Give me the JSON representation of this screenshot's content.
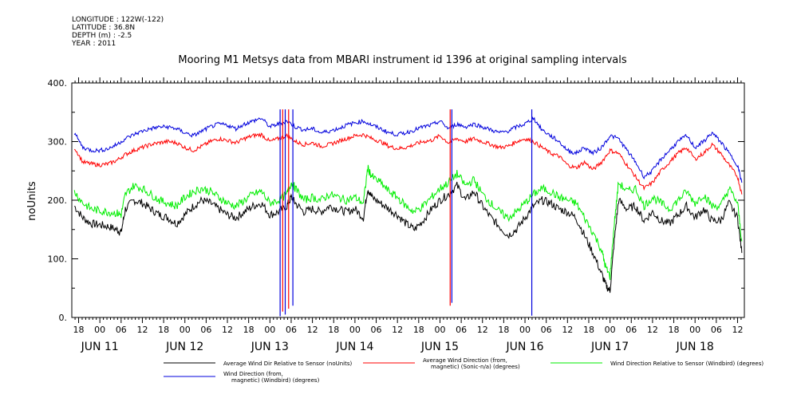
{
  "header": {
    "longitude": "LONGITUDE : 122W(-122)",
    "latitude": "LATITUDE : 36.8N",
    "depth": "DEPTH (m) : -2.5",
    "year": "YEAR : 2011"
  },
  "chart_data": {
    "type": "line",
    "title": "Mooring M1 Metsys data from MBARI instrument id 1396 at original sampling intervals",
    "ylabel": "noUnits",
    "xlabel": "",
    "ylim": [
      0,
      400
    ],
    "yticks": [
      "0.",
      "100.",
      "200.",
      "300.",
      "400."
    ],
    "xlim": [
      -0.33,
      7.58
    ],
    "x_units": "days since JUN 11 2011 00:00",
    "hour_ticks": [
      "18",
      "00",
      "06",
      "12",
      "18",
      "00",
      "06",
      "12",
      "18",
      "00",
      "06",
      "12",
      "18",
      "00",
      "06",
      "12",
      "18",
      "00",
      "06",
      "12",
      "18",
      "00",
      "06",
      "12",
      "18",
      "00",
      "06",
      "12",
      "18",
      "00",
      "06",
      "12"
    ],
    "day_labels": [
      {
        "label": "JUN 11",
        "day": 0
      },
      {
        "label": "JUN 12",
        "day": 1
      },
      {
        "label": "JUN 13",
        "day": 2
      },
      {
        "label": "JUN 14",
        "day": 3
      },
      {
        "label": "JUN 15",
        "day": 4
      },
      {
        "label": "JUN 16",
        "day": 5
      },
      {
        "label": "JUN 17",
        "day": 6
      },
      {
        "label": "JUN 18",
        "day": 7
      }
    ],
    "series": [
      {
        "name": "Average Wind Dir Relative to Sensor (noUnits)",
        "color": "#000000",
        "x": [
          -0.3,
          -0.2,
          -0.1,
          0.0,
          0.1,
          0.2,
          0.25,
          0.3,
          0.4,
          0.5,
          0.6,
          0.7,
          0.8,
          0.9,
          1.0,
          1.1,
          1.2,
          1.3,
          1.4,
          1.5,
          1.6,
          1.7,
          1.8,
          1.9,
          2.0,
          2.1,
          2.2,
          2.25,
          2.3,
          2.4,
          2.5,
          2.6,
          2.7,
          2.8,
          2.9,
          3.0,
          3.1,
          3.15,
          3.2,
          3.3,
          3.4,
          3.5,
          3.6,
          3.7,
          3.8,
          3.9,
          4.0,
          4.1,
          4.2,
          4.3,
          4.4,
          4.5,
          4.6,
          4.7,
          4.8,
          4.9,
          5.0,
          5.1,
          5.2,
          5.3,
          5.4,
          5.5,
          5.6,
          5.7,
          5.8,
          5.9,
          5.95,
          6.0,
          6.05,
          6.1,
          6.2,
          6.3,
          6.4,
          6.5,
          6.6,
          6.7,
          6.8,
          6.9,
          7.0,
          7.1,
          7.2,
          7.3,
          7.4,
          7.5,
          7.55
        ],
        "values": [
          190,
          170,
          160,
          158,
          155,
          150,
          145,
          185,
          200,
          195,
          185,
          175,
          170,
          160,
          175,
          190,
          200,
          195,
          185,
          175,
          170,
          180,
          190,
          195,
          175,
          180,
          190,
          205,
          195,
          180,
          185,
          180,
          190,
          185,
          180,
          185,
          170,
          220,
          205,
          195,
          185,
          175,
          160,
          150,
          165,
          185,
          200,
          210,
          225,
          200,
          215,
          190,
          170,
          155,
          140,
          150,
          170,
          190,
          200,
          195,
          185,
          180,
          170,
          140,
          110,
          75,
          55,
          45,
          130,
          200,
          185,
          190,
          165,
          180,
          165,
          160,
          175,
          190,
          170,
          185,
          165,
          165,
          195,
          170,
          110
        ]
      },
      {
        "name": "Average Wind Direction (from, magnetic) (Sonic-n/a) (degrees)",
        "color": "#ff0000",
        "x": [
          -0.3,
          -0.2,
          -0.1,
          0.0,
          0.1,
          0.2,
          0.3,
          0.4,
          0.5,
          0.6,
          0.7,
          0.8,
          0.9,
          1.0,
          1.1,
          1.2,
          1.3,
          1.4,
          1.5,
          1.6,
          1.7,
          1.8,
          1.9,
          2.0,
          2.1,
          2.2,
          2.3,
          2.4,
          2.5,
          2.6,
          2.7,
          2.8,
          2.9,
          3.0,
          3.1,
          3.2,
          3.3,
          3.4,
          3.5,
          3.6,
          3.7,
          3.8,
          3.9,
          4.0,
          4.1,
          4.2,
          4.3,
          4.4,
          4.5,
          4.6,
          4.7,
          4.8,
          4.9,
          5.0,
          5.1,
          5.2,
          5.3,
          5.4,
          5.5,
          5.6,
          5.7,
          5.8,
          5.9,
          6.0,
          6.1,
          6.2,
          6.3,
          6.4,
          6.5,
          6.6,
          6.7,
          6.8,
          6.9,
          7.0,
          7.1,
          7.2,
          7.3,
          7.4,
          7.5,
          7.55
        ],
        "values": [
          290,
          265,
          262,
          260,
          262,
          268,
          278,
          285,
          290,
          295,
          298,
          300,
          298,
          290,
          285,
          292,
          300,
          305,
          302,
          298,
          305,
          310,
          312,
          300,
          305,
          310,
          300,
          295,
          298,
          292,
          295,
          300,
          305,
          310,
          312,
          305,
          300,
          292,
          288,
          290,
          295,
          300,
          302,
          310,
          298,
          305,
          300,
          305,
          300,
          295,
          290,
          292,
          300,
          305,
          300,
          290,
          280,
          275,
          260,
          255,
          265,
          252,
          265,
          285,
          280,
          260,
          240,
          220,
          230,
          250,
          265,
          280,
          290,
          270,
          280,
          295,
          280,
          260,
          240,
          210
        ]
      },
      {
        "name": "Wind Direction Relative to Sensor (Windbird) (degrees)",
        "color": "#00ee00",
        "x": [
          -0.3,
          -0.2,
          -0.1,
          0.0,
          0.1,
          0.2,
          0.25,
          0.3,
          0.4,
          0.5,
          0.6,
          0.7,
          0.8,
          0.9,
          1.0,
          1.1,
          1.2,
          1.3,
          1.4,
          1.5,
          1.6,
          1.7,
          1.8,
          1.9,
          2.0,
          2.1,
          2.2,
          2.25,
          2.3,
          2.4,
          2.5,
          2.6,
          2.7,
          2.8,
          2.9,
          3.0,
          3.1,
          3.15,
          3.2,
          3.3,
          3.4,
          3.5,
          3.6,
          3.7,
          3.8,
          3.9,
          4.0,
          4.1,
          4.2,
          4.3,
          4.4,
          4.5,
          4.6,
          4.7,
          4.8,
          4.9,
          5.0,
          5.1,
          5.2,
          5.3,
          5.4,
          5.5,
          5.6,
          5.7,
          5.8,
          5.9,
          5.95,
          6.0,
          6.05,
          6.1,
          6.2,
          6.3,
          6.4,
          6.5,
          6.6,
          6.7,
          6.8,
          6.9,
          7.0,
          7.1,
          7.2,
          7.3,
          7.4,
          7.5,
          7.55
        ],
        "values": [
          215,
          195,
          185,
          182,
          180,
          178,
          175,
          210,
          225,
          220,
          210,
          200,
          195,
          190,
          205,
          215,
          220,
          215,
          205,
          195,
          190,
          200,
          210,
          215,
          195,
          200,
          210,
          230,
          220,
          200,
          205,
          200,
          210,
          205,
          200,
          205,
          195,
          255,
          240,
          230,
          215,
          205,
          190,
          180,
          190,
          205,
          220,
          230,
          245,
          225,
          235,
          210,
          195,
          180,
          170,
          180,
          195,
          210,
          220,
          215,
          205,
          200,
          195,
          170,
          145,
          115,
          85,
          70,
          160,
          230,
          215,
          220,
          190,
          205,
          195,
          185,
          200,
          215,
          195,
          210,
          190,
          190,
          220,
          195,
          130
        ]
      },
      {
        "name": "Wind Direction (from, magnetic) (Windbird) (degrees)",
        "color": "#0000dd",
        "x": [
          -0.3,
          -0.2,
          -0.1,
          0.0,
          0.1,
          0.2,
          0.3,
          0.4,
          0.5,
          0.6,
          0.7,
          0.8,
          0.9,
          1.0,
          1.1,
          1.2,
          1.3,
          1.4,
          1.5,
          1.6,
          1.7,
          1.8,
          1.9,
          2.0,
          2.1,
          2.2,
          2.3,
          2.4,
          2.5,
          2.6,
          2.7,
          2.8,
          2.9,
          3.0,
          3.1,
          3.2,
          3.3,
          3.4,
          3.5,
          3.6,
          3.7,
          3.8,
          3.9,
          4.0,
          4.1,
          4.2,
          4.3,
          4.4,
          4.5,
          4.6,
          4.7,
          4.8,
          4.9,
          5.0,
          5.1,
          5.2,
          5.3,
          5.4,
          5.5,
          5.6,
          5.7,
          5.8,
          5.9,
          6.0,
          6.1,
          6.2,
          6.3,
          6.4,
          6.5,
          6.6,
          6.7,
          6.8,
          6.9,
          7.0,
          7.1,
          7.2,
          7.3,
          7.4,
          7.5,
          7.55
        ],
        "values": [
          315,
          290,
          285,
          285,
          288,
          295,
          305,
          312,
          318,
          322,
          325,
          325,
          322,
          315,
          310,
          318,
          325,
          330,
          328,
          322,
          330,
          335,
          340,
          325,
          330,
          335,
          325,
          320,
          322,
          315,
          318,
          322,
          328,
          332,
          335,
          328,
          322,
          315,
          312,
          315,
          320,
          325,
          328,
          335,
          322,
          330,
          325,
          330,
          325,
          320,
          315,
          318,
          325,
          330,
          340,
          320,
          310,
          300,
          285,
          280,
          290,
          280,
          290,
          310,
          305,
          285,
          265,
          240,
          250,
          270,
          285,
          300,
          310,
          290,
          300,
          315,
          300,
          280,
          260,
          230
        ]
      }
    ],
    "dropouts": [
      {
        "x": 2.12,
        "color": "#0000dd",
        "to": 2
      },
      {
        "x": 2.15,
        "color": "#ff0000",
        "to": 10
      },
      {
        "x": 2.18,
        "color": "#0000dd",
        "to": 5
      },
      {
        "x": 2.22,
        "color": "#ff0000",
        "to": 15
      },
      {
        "x": 2.27,
        "color": "#0000dd",
        "to": 20
      },
      {
        "x": 4.12,
        "color": "#ff0000",
        "to": 20
      },
      {
        "x": 4.14,
        "color": "#0000dd",
        "to": 25
      },
      {
        "x": 5.08,
        "color": "#0000dd",
        "to": 3
      }
    ],
    "legend_placement": "bottom",
    "grid": false
  }
}
